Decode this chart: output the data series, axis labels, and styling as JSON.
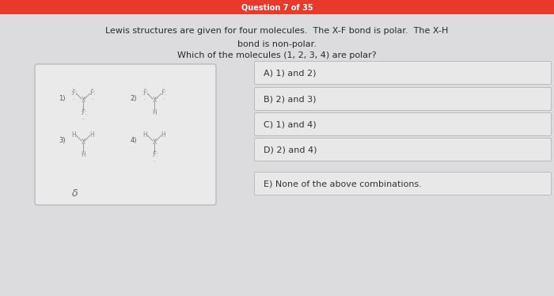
{
  "title": "Question 7 of 35",
  "title_bg": "#e8392a",
  "title_color": "white",
  "question_text_line1": "Lewis structures are given for four molecules.  The X-F bond is polar.  The X-H",
  "question_text_line2": "bond is non-polar.",
  "question_text_line3": "Which of the molecules (1, 2, 3, 4) are polar?",
  "bg_color": "#d4d4d8",
  "panel_bg": "#eaeaea",
  "panel_border": "#b0b0b0",
  "options": [
    "A) 1) and 2)",
    "B) 2) and 3)",
    "C) 1) and 4)",
    "D) 2) and 4)",
    "E) None of the above combinations."
  ],
  "option_bg": "#e8e8e8",
  "option_border": "#bbbbbb",
  "label_color": "#555555",
  "bond_color": "#999999",
  "atom_color": "#888888",
  "title_fontsize": 7,
  "question_fontsize": 8,
  "option_fontsize": 8,
  "mol_fontsize": 5.5,
  "mol_num_fontsize": 6
}
